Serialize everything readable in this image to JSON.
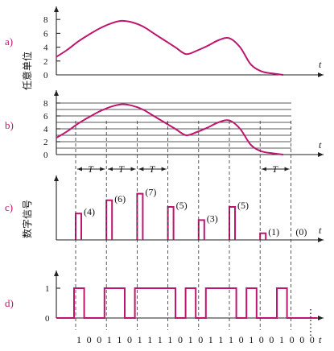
{
  "colors": {
    "signal": "#c0156e",
    "axis": "#222222"
  },
  "panel_a": {
    "label": "a)",
    "ylabel": "任意单位",
    "y_ticks": [
      "0",
      "2",
      "4",
      "6",
      "8"
    ],
    "t_label": "t"
  },
  "panel_b": {
    "label": "b)",
    "y_ticks": [
      "0",
      "2",
      "4",
      "6",
      "8"
    ],
    "t_label": "t",
    "T_label": "T"
  },
  "panel_c": {
    "label": "c)",
    "ylabel": "数字信号",
    "t_label": "t",
    "annotations": [
      "(4)",
      "(6)",
      "(7)",
      "(5)",
      "(3)",
      "(5)",
      "(1)",
      "(0)"
    ]
  },
  "panel_d": {
    "label": "d)",
    "y_ticks": [
      "0",
      "1"
    ],
    "t_label": "t"
  },
  "bits": "100110111101011101001000",
  "chart_data": {
    "type": "line",
    "curve_y": [
      2.6,
      3.6,
      4.8,
      5.8,
      6.7,
      7.4,
      7.8,
      7.6,
      7.0,
      6.0,
      5.0,
      4.0,
      3.0,
      3.5,
      4.2,
      5.0,
      5.3,
      4.0,
      1.5,
      0.5,
      0.2,
      0.0
    ],
    "samples": [
      4,
      6,
      7,
      5,
      3,
      5,
      1,
      0
    ],
    "ylim": [
      0,
      8
    ]
  },
  "sampling_period_label": "T"
}
